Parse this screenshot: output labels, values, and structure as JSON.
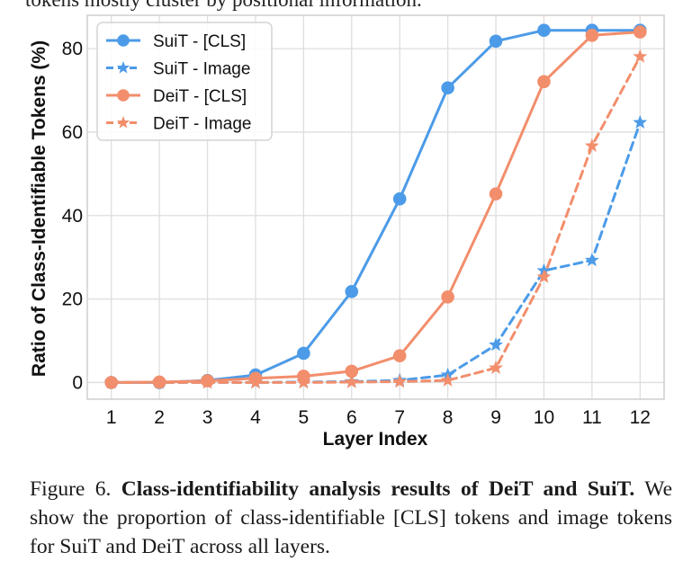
{
  "top_text": "tokens mostly cluster by positional information.",
  "chart_data": {
    "type": "line",
    "title": "",
    "xlabel": "Layer Index",
    "ylabel": "Ratio of Class-Identifiable Tokens (%)",
    "x": [
      1,
      2,
      3,
      4,
      5,
      6,
      7,
      8,
      9,
      10,
      11,
      12
    ],
    "xlim": [
      0.5,
      12.5
    ],
    "ylim": [
      -4,
      88
    ],
    "yticks": [
      0,
      20,
      40,
      60,
      80
    ],
    "grid": true,
    "legend_position": "top-left",
    "series": [
      {
        "name": "SuiT - [CLS]",
        "color": "#4c9be8",
        "dash": "solid",
        "marker": "circle",
        "values": [
          0,
          0,
          0.5,
          1.8,
          7,
          21.8,
          44,
          70.6,
          81.8,
          84.4,
          84.4,
          84.4
        ]
      },
      {
        "name": "SuiT - Image",
        "color": "#4c9be8",
        "dash": "dashed",
        "marker": "star",
        "values": [
          0,
          0,
          0,
          0,
          0.1,
          0.2,
          0.5,
          1.8,
          9,
          26.8,
          29.3,
          62.3
        ]
      },
      {
        "name": "DeiT - [CLS]",
        "color": "#f28e6c",
        "dash": "solid",
        "marker": "circle",
        "values": [
          0,
          0.1,
          0.4,
          1,
          1.5,
          2.7,
          6.4,
          20.5,
          45.2,
          72.1,
          83.2,
          84
        ]
      },
      {
        "name": "DeiT - Image",
        "color": "#f28e6c",
        "dash": "dashed",
        "marker": "star",
        "values": [
          0,
          0,
          0,
          0,
          0,
          0.1,
          0.2,
          0.5,
          3.5,
          25.3,
          56.7,
          78.1
        ]
      }
    ]
  },
  "caption": {
    "label": "Figure 6.",
    "title": "Class-identifiability analysis results of DeiT and SuiT.",
    "body": "We show the proportion of class-identifiable [CLS] tokens and image tokens for SuiT and DeiT across all layers."
  }
}
